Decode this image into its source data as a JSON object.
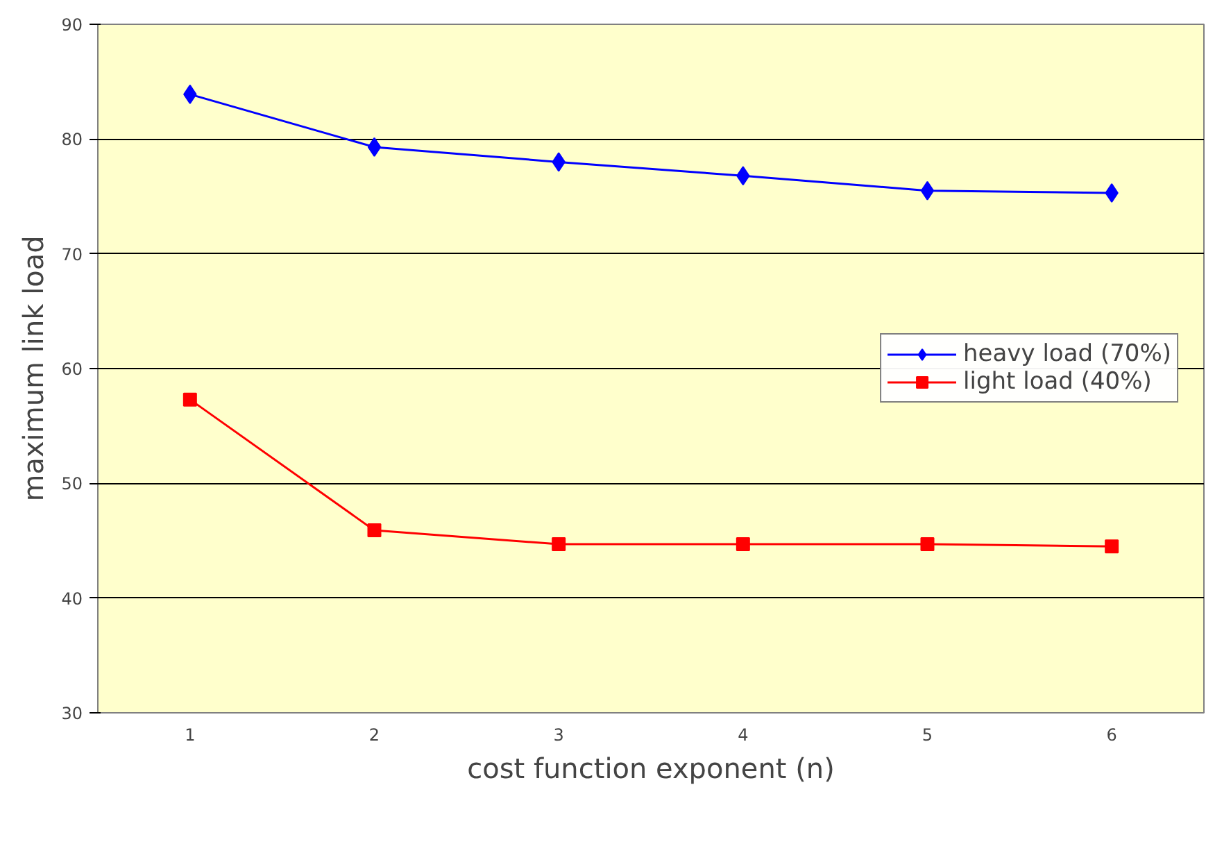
{
  "chart_data": {
    "type": "line",
    "xlabel": "cost function exponent (n)",
    "ylabel": "maximum link load",
    "categories": [
      "1",
      "2",
      "3",
      "4",
      "5",
      "6"
    ],
    "series": [
      {
        "name": "heavy load (70%)",
        "color": "#0000ff",
        "marker": "diamond",
        "values": [
          83.9,
          79.3,
          78.0,
          76.8,
          75.5,
          75.3
        ]
      },
      {
        "name": "light load (40%)",
        "color": "#ff0000",
        "marker": "square",
        "values": [
          57.3,
          45.9,
          44.7,
          44.7,
          44.7,
          44.5
        ]
      }
    ],
    "ylim": [
      30,
      90
    ],
    "yticks": [
      30,
      40,
      50,
      60,
      70,
      80,
      90
    ],
    "grid": "y",
    "legend": "right",
    "line_style": "solid"
  }
}
